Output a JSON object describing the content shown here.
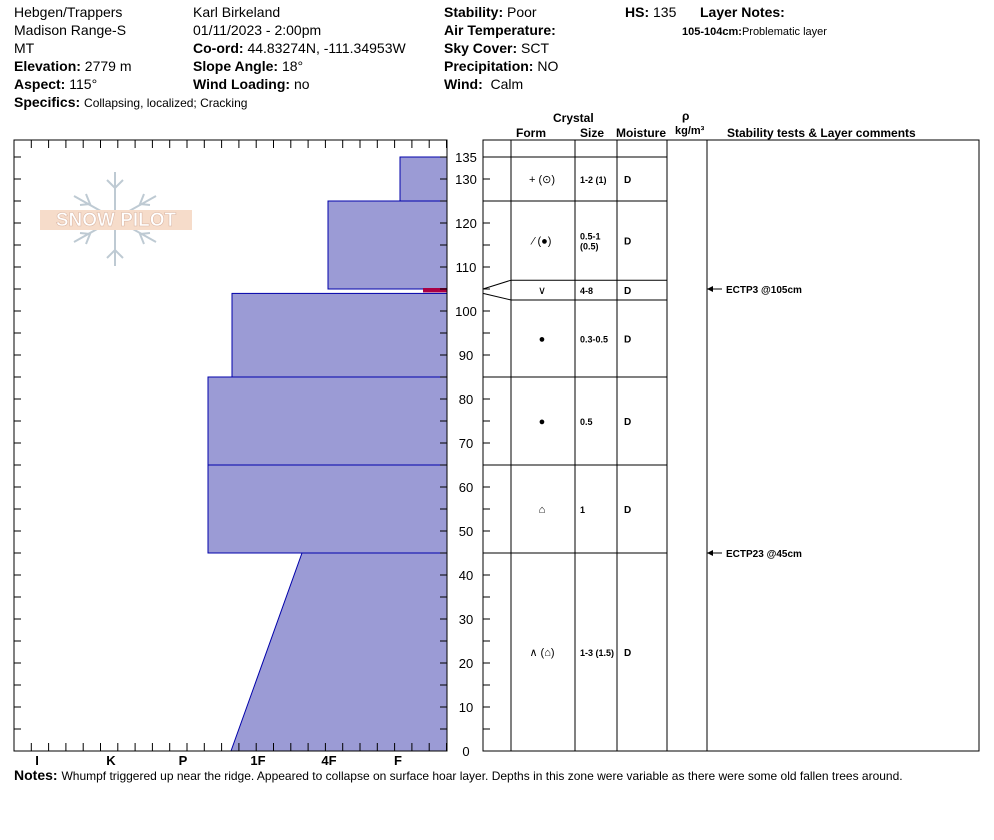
{
  "header": {
    "location": "Hebgen/Trappers",
    "range": "Madison Range-S",
    "state": "MT",
    "elevation_label": "Elevation:",
    "elevation_value": "2779 m",
    "aspect_label": "Aspect:",
    "aspect_value": "115°",
    "specifics_label": "Specifics:",
    "specifics_value": "Collapsing, localized; Cracking",
    "observer": "Karl Birkeland",
    "datetime": "01/11/2023 - 2:00pm",
    "coord_label": "Co-ord:",
    "coord_value": "44.83274N, -111.34953W",
    "slope_label": "Slope Angle:",
    "slope_value": "18°",
    "wind_loading_label": "Wind Loading:",
    "wind_loading_value": "no",
    "stability_label": "Stability:",
    "stability_value": "Poor",
    "air_temp_label": "Air Temperature:",
    "sky_cover_label": "Sky Cover:",
    "sky_cover_value": "SCT",
    "precip_label": "Precipitation:",
    "precip_value": "NO",
    "wind_label": "Wind:",
    "wind_value": "Calm",
    "hs_label": "HS:",
    "hs_value": "135",
    "layer_notes_label": "Layer Notes:",
    "layer_note_depth": "105-104cm:",
    "layer_note_text": "Problematic layer"
  },
  "logo_text": "SNOW PILOT",
  "table_headers": {
    "crystal": "Crystal",
    "form": "Form",
    "size": "Size",
    "moisture": "Moisture",
    "rho": "ρ",
    "density_unit": "kg/m³",
    "comments": "Stability tests & Layer comments"
  },
  "notes_label": "Notes:",
  "notes_text": "Whumpf triggered up near the ridge.  Appeared to collapse on surface hoar layer.  Depths in this zone were variable as there were some old fallen trees around.",
  "colors": {
    "hardness_fill": "#9b9bd5",
    "hardness_edge": "#0000aa",
    "problem_marker": "#aa0044"
  },
  "chart_data": {
    "type": "snow-profile",
    "depth_axis": {
      "min": 0,
      "max": 135,
      "ticks": [
        0,
        10,
        20,
        30,
        40,
        50,
        60,
        70,
        80,
        90,
        100,
        110,
        120,
        130,
        135
      ]
    },
    "hardness_axis": {
      "labels": [
        "I",
        "K",
        "P",
        "1F",
        "4F",
        "F"
      ]
    },
    "hardness_profile": [
      {
        "top": 135,
        "bottom": 125,
        "hardness": "F+"
      },
      {
        "top": 125,
        "bottom": 105,
        "hardness": "4F+"
      },
      {
        "top": 104,
        "bottom": 85,
        "hardness": "1F+"
      },
      {
        "top": 85,
        "bottom": 65,
        "hardness": "1F"
      },
      {
        "top": 65,
        "bottom": 45,
        "hardness": "1F"
      },
      {
        "top": 45,
        "bottom": 0,
        "hardness": "4F to 1F"
      }
    ],
    "problem_layer": {
      "top": 105,
      "bottom": 104
    },
    "layers": [
      {
        "top": 135,
        "bottom": 125,
        "form": "+ (⊙)",
        "size": "1-2 (1)",
        "size2": "",
        "moisture": "D"
      },
      {
        "top": 125,
        "bottom": 107,
        "form": "⁄ (●)",
        "size": "0.5-1",
        "size2": "(0.5)",
        "moisture": "D"
      },
      {
        "top": 107,
        "bottom": 102.5,
        "form": "∨",
        "size": "4-8",
        "size2": "",
        "moisture": "D"
      },
      {
        "top": 102.5,
        "bottom": 85,
        "form": "●",
        "size": "0.3-0.5",
        "size2": "",
        "moisture": "D"
      },
      {
        "top": 85,
        "bottom": 65,
        "form": "●",
        "size": "0.5",
        "size2": "",
        "moisture": "D"
      },
      {
        "top": 65,
        "bottom": 45,
        "form": "⌂",
        "size": "1",
        "size2": "",
        "moisture": "D"
      },
      {
        "top": 45,
        "bottom": 0,
        "form": "∧ (⌂)",
        "size": "1-3 (1.5)",
        "size2": "",
        "moisture": "D"
      }
    ],
    "stability_tests": [
      {
        "depth": 105,
        "text": "ECTP3 @105cm"
      },
      {
        "depth": 45,
        "text": "ECTP23 @45cm"
      }
    ]
  }
}
